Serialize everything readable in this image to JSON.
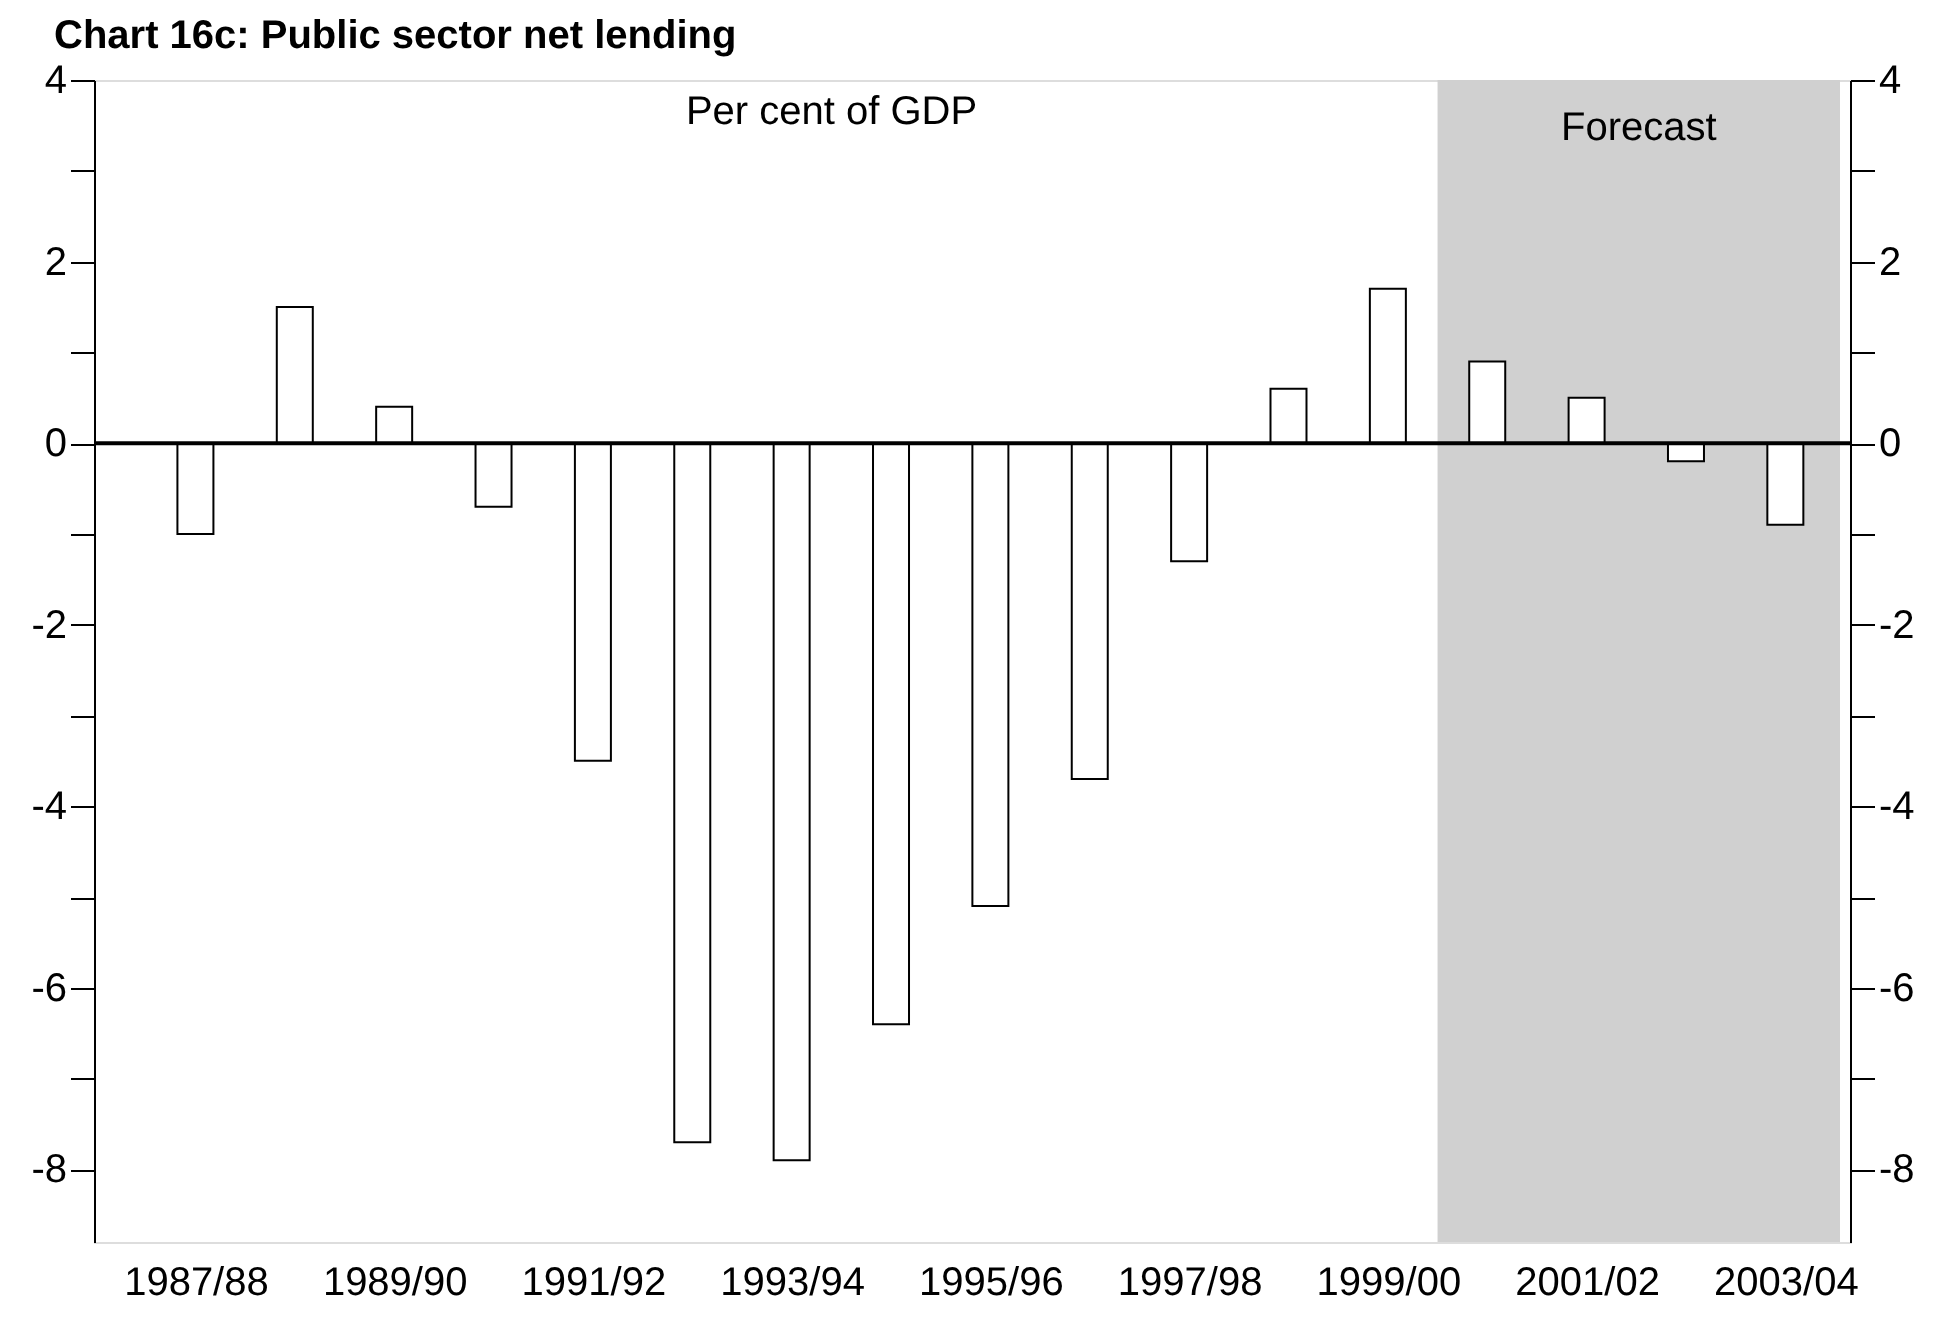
{
  "chart_data": {
    "type": "bar",
    "title": "Chart 16c: Public sector net lending",
    "categories": [
      "1987/88",
      null,
      "1989/90",
      null,
      "1991/92",
      null,
      "1993/94",
      null,
      "1995/96",
      null,
      "1997/98",
      null,
      "1999/00",
      null,
      "2001/02",
      null,
      "2003/04"
    ],
    "series": [
      {
        "color": "#ffffff",
        "values": [
          -1.0,
          1.5,
          0.4,
          -0.7,
          -3.5,
          -7.7,
          -7.9,
          -6.4,
          -5.1,
          -3.7,
          -1.3,
          0.6,
          1.7,
          0.9,
          0.5,
          -0.2,
          -0.9
        ]
      }
    ],
    "ylim": [
      -8.8,
      4
    ],
    "yticks": [
      4,
      {
        "value": 3,
        "label": null
      },
      2,
      {
        "value": 1,
        "label": null
      },
      0,
      {
        "value": -1,
        "label": null
      },
      -2,
      {
        "value": -3,
        "label": null
      },
      -4,
      {
        "value": -5,
        "label": null
      },
      -6,
      {
        "value": -7,
        "label": null
      },
      -8
    ],
    "y2lim": [
      -8.8,
      4
    ],
    "y2ticks": [
      4,
      {
        "value": 3,
        "label": null
      },
      2,
      {
        "value": 1,
        "label": null
      },
      0,
      {
        "value": -1,
        "label": null
      },
      -2,
      {
        "value": -3,
        "label": null
      },
      -4,
      {
        "value": -5,
        "label": null
      },
      -6,
      {
        "value": -7,
        "label": null
      },
      -8
    ],
    "ref_lines": [
      {
        "axis": "y",
        "value": 0,
        "color": "#000000"
      }
    ],
    "bands": [
      {
        "axis": "x",
        "from": "1999/00",
        "to": "2003/04",
        "label": "Forecast",
        "color": "#d0d0d0"
      }
    ],
    "annotations": [
      "Per cent of GDP"
    ],
    "grid": false
  }
}
